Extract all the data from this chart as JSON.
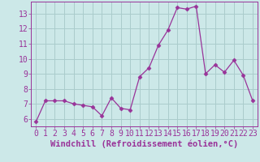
{
  "x": [
    0,
    1,
    2,
    3,
    4,
    5,
    6,
    7,
    8,
    9,
    10,
    11,
    12,
    13,
    14,
    15,
    16,
    17,
    18,
    19,
    20,
    21,
    22,
    23
  ],
  "y": [
    5.8,
    7.2,
    7.2,
    7.2,
    7.0,
    6.9,
    6.8,
    6.2,
    7.4,
    6.7,
    6.6,
    8.8,
    9.4,
    10.9,
    11.9,
    13.4,
    13.3,
    13.5,
    9.0,
    9.6,
    9.1,
    9.9,
    8.9,
    7.2
  ],
  "line_color": "#993399",
  "marker": "D",
  "marker_size": 2.5,
  "bg_color": "#cce8e8",
  "grid_color": "#aacccc",
  "xlabel": "Windchill (Refroidissement éolien,°C)",
  "xlabel_color": "#993399",
  "tick_color": "#993399",
  "ylim": [
    5.5,
    13.8
  ],
  "xlim": [
    -0.5,
    23.5
  ],
  "yticks": [
    6,
    7,
    8,
    9,
    10,
    11,
    12,
    13
  ],
  "xticks": [
    0,
    1,
    2,
    3,
    4,
    5,
    6,
    7,
    8,
    9,
    10,
    11,
    12,
    13,
    14,
    15,
    16,
    17,
    18,
    19,
    20,
    21,
    22,
    23
  ],
  "tick_fontsize": 7.0,
  "xlabel_fontsize": 7.5
}
